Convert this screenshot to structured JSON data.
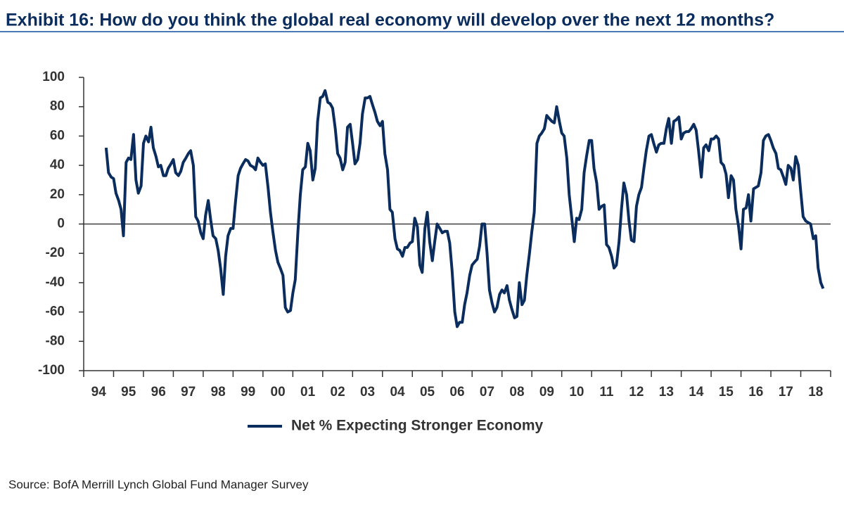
{
  "chart_data": {
    "type": "line",
    "title": "Exhibit 16: How do you think the global real economy will develop over the next 12 months?",
    "source": "Source: BofA Merrill Lynch Global Fund Manager Survey",
    "x": [
      1994.75,
      1994.83,
      1994.92,
      1995,
      1995.08,
      1995.17,
      1995.25,
      1995.33,
      1995.42,
      1995.5,
      1995.58,
      1995.67,
      1995.75,
      1995.83,
      1995.92,
      1996,
      1996.08,
      1996.17,
      1996.25,
      1996.33,
      1996.42,
      1996.5,
      1996.58,
      1996.67,
      1996.75,
      1996.83,
      1996.92,
      1997,
      1997.08,
      1997.17,
      1997.25,
      1997.33,
      1997.42,
      1997.5,
      1997.58,
      1997.67,
      1997.75,
      1997.83,
      1997.92,
      1998,
      1998.08,
      1998.17,
      1998.25,
      1998.33,
      1998.42,
      1998.5,
      1998.58,
      1998.67,
      1998.75,
      1998.83,
      1998.92,
      1999,
      1999.08,
      1999.17,
      1999.25,
      1999.33,
      1999.42,
      1999.5,
      1999.58,
      1999.67,
      1999.75,
      1999.83,
      1999.92,
      2000,
      2000.08,
      2000.17,
      2000.25,
      2000.33,
      2000.42,
      2000.5,
      2000.58,
      2000.67,
      2000.75,
      2000.83,
      2000.92,
      2001,
      2001.08,
      2001.17,
      2001.25,
      2001.33,
      2001.42,
      2001.5,
      2001.58,
      2001.67,
      2001.75,
      2001.83,
      2001.92,
      2002,
      2002.08,
      2002.17,
      2002.25,
      2002.33,
      2002.42,
      2002.5,
      2002.58,
      2002.67,
      2002.75,
      2002.83,
      2002.92,
      2003,
      2003.08,
      2003.17,
      2003.25,
      2003.33,
      2003.42,
      2003.5,
      2003.58,
      2003.67,
      2003.75,
      2003.83,
      2003.92,
      2004,
      2004.08,
      2004.17,
      2004.25,
      2004.33,
      2004.42,
      2004.5,
      2004.58,
      2004.67,
      2004.75,
      2004.83,
      2004.92,
      2005,
      2005.08,
      2005.17,
      2005.25,
      2005.33,
      2005.42,
      2005.5,
      2005.58,
      2005.67,
      2005.75,
      2005.83,
      2005.92,
      2006,
      2006.08,
      2006.17,
      2006.25,
      2006.33,
      2006.42,
      2006.5,
      2006.58,
      2006.67,
      2006.75,
      2006.83,
      2006.92,
      2007,
      2007.08,
      2007.17,
      2007.25,
      2007.33,
      2007.42,
      2007.5,
      2007.58,
      2007.67,
      2007.75,
      2007.83,
      2007.92,
      2008,
      2008.08,
      2008.17,
      2008.25,
      2008.33,
      2008.42,
      2008.5,
      2008.58,
      2008.67,
      2008.75,
      2008.83,
      2008.92,
      2009,
      2009.08,
      2009.17,
      2009.25,
      2009.33,
      2009.42,
      2009.5,
      2009.58,
      2009.67,
      2009.75,
      2009.83,
      2009.92,
      2010,
      2010.08,
      2010.17,
      2010.25,
      2010.33,
      2010.42,
      2010.5,
      2010.58,
      2010.67,
      2010.75,
      2010.83,
      2010.92,
      2011,
      2011.08,
      2011.17,
      2011.25,
      2011.33,
      2011.42,
      2011.5,
      2011.58,
      2011.67,
      2011.75,
      2011.83,
      2011.92,
      2012,
      2012.08,
      2012.17,
      2012.25,
      2012.33,
      2012.42,
      2012.5,
      2012.58,
      2012.67,
      2012.75,
      2012.83,
      2012.92,
      2013,
      2013.08,
      2013.17,
      2013.25,
      2013.33,
      2013.42,
      2013.5,
      2013.58,
      2013.67,
      2013.75,
      2013.83,
      2013.92,
      2014,
      2014.08,
      2014.17,
      2014.25,
      2014.33,
      2014.42,
      2014.5,
      2014.58,
      2014.67,
      2014.75,
      2014.83,
      2014.92,
      2015,
      2015.08,
      2015.17,
      2015.25,
      2015.33,
      2015.42,
      2015.5,
      2015.58,
      2015.67,
      2015.75,
      2015.83,
      2015.92,
      2016,
      2016.08,
      2016.17,
      2016.25,
      2016.33,
      2016.42,
      2016.5,
      2016.58,
      2016.67,
      2016.75,
      2016.83,
      2016.92,
      2017,
      2017.08,
      2017.17,
      2017.25,
      2017.33,
      2017.42,
      2017.5,
      2017.58,
      2017.67,
      2017.75,
      2017.83,
      2017.92,
      2018,
      2018.08,
      2018.17,
      2018.25,
      2018.33,
      2018.42,
      2018.5,
      2018.58,
      2018.67,
      2018.75
    ],
    "series": [
      {
        "name": "Net % Expecting Stronger Economy",
        "color": "#0b2d5e",
        "values": [
          52,
          35,
          32,
          31,
          21,
          16,
          10,
          -8,
          42,
          45,
          44,
          61,
          30,
          21,
          26,
          55,
          60,
          56,
          66,
          52,
          46,
          39,
          40,
          33,
          33,
          38,
          41,
          44,
          35,
          33,
          36,
          42,
          45,
          48,
          50,
          40,
          5,
          2,
          -6,
          -10,
          6,
          16,
          3,
          -8,
          -10,
          -18,
          -30,
          -48,
          -22,
          -8,
          -3,
          -3,
          15,
          33,
          38,
          41,
          44,
          43,
          40,
          39,
          37,
          45,
          42,
          40,
          41,
          25,
          8,
          -5,
          -18,
          -26,
          -30,
          -35,
          -57,
          -60,
          -59,
          -47,
          -38,
          -5,
          20,
          37,
          39,
          55,
          50,
          30,
          38,
          70,
          86,
          87,
          91,
          83,
          82,
          79,
          65,
          48,
          45,
          37,
          42,
          66,
          68,
          55,
          41,
          44,
          55,
          75,
          86,
          86,
          87,
          81,
          76,
          70,
          67,
          70,
          48,
          37,
          10,
          8,
          -10,
          -17,
          -18,
          -22,
          -16,
          -16,
          -13,
          -12,
          4,
          -2,
          -28,
          -33,
          -3,
          8,
          -12,
          -25,
          -12,
          0,
          -3,
          -6,
          -5,
          -5,
          -13,
          -32,
          -60,
          -70,
          -67,
          -67,
          -55,
          -47,
          -35,
          -28,
          -26,
          -24,
          -15,
          0,
          0,
          -20,
          -45,
          -54,
          -60,
          -57,
          -48,
          -45,
          -47,
          -42,
          -52,
          -58,
          -64,
          -63,
          -40,
          -55,
          -52,
          -35,
          -20,
          -5,
          8,
          55,
          60,
          62,
          65,
          74,
          72,
          70,
          69,
          80,
          70,
          62,
          60,
          45,
          20,
          5,
          -12,
          4,
          3,
          10,
          35,
          46,
          57,
          57,
          38,
          28,
          10,
          12,
          13,
          -14,
          -16,
          -22,
          -30,
          -28,
          -12,
          10,
          28,
          20,
          2,
          -11,
          -12,
          12,
          20,
          25,
          38,
          50,
          60,
          61,
          55,
          49,
          54,
          55,
          55,
          65,
          72,
          55,
          70,
          71,
          73,
          58,
          62,
          63,
          63,
          65,
          68,
          64,
          50,
          32,
          52,
          54,
          50,
          58,
          58,
          60,
          58,
          42,
          40,
          34,
          18,
          33,
          30,
          10,
          -2,
          -17,
          10,
          11,
          20,
          2,
          24,
          25,
          26,
          35,
          57,
          60,
          61,
          57,
          52,
          48,
          38,
          37,
          32,
          27,
          40,
          38,
          30,
          46,
          40,
          22,
          5,
          2,
          1,
          0,
          -10,
          -8,
          -30,
          -40,
          -44
        ]
      }
    ],
    "xlim": [
      1994,
      2019
    ],
    "xticks": [
      {
        "value": 1994.5,
        "label": "94"
      },
      {
        "value": 1995.5,
        "label": "95"
      },
      {
        "value": 1996.5,
        "label": "96"
      },
      {
        "value": 1997.5,
        "label": "97"
      },
      {
        "value": 1998.5,
        "label": "98"
      },
      {
        "value": 1999.5,
        "label": "99"
      },
      {
        "value": 2000.5,
        "label": "00"
      },
      {
        "value": 2001.5,
        "label": "01"
      },
      {
        "value": 2002.5,
        "label": "02"
      },
      {
        "value": 2003.5,
        "label": "03"
      },
      {
        "value": 2004.5,
        "label": "04"
      },
      {
        "value": 2005.5,
        "label": "05"
      },
      {
        "value": 2006.5,
        "label": "06"
      },
      {
        "value": 2007.5,
        "label": "07"
      },
      {
        "value": 2008.5,
        "label": "08"
      },
      {
        "value": 2009.5,
        "label": "09"
      },
      {
        "value": 2010.5,
        "label": "10"
      },
      {
        "value": 2011.5,
        "label": "11"
      },
      {
        "value": 2012.5,
        "label": "12"
      },
      {
        "value": 2013.5,
        "label": "13"
      },
      {
        "value": 2014.5,
        "label": "14"
      },
      {
        "value": 2015.5,
        "label": "15"
      },
      {
        "value": 2016.5,
        "label": "16"
      },
      {
        "value": 2017.5,
        "label": "17"
      },
      {
        "value": 2018.5,
        "label": "18"
      }
    ],
    "xminor_ticks": [
      1994,
      1995,
      1996,
      1997,
      1998,
      1999,
      2000,
      2001,
      2002,
      2003,
      2004,
      2005,
      2006,
      2007,
      2008,
      2009,
      2010,
      2011,
      2012,
      2013,
      2014,
      2015,
      2016,
      2017,
      2018,
      2019
    ],
    "ylim": [
      -100,
      100
    ],
    "yticks": [
      -100,
      -80,
      -60,
      -40,
      -20,
      0,
      20,
      40,
      60,
      80,
      100
    ],
    "zero_line": true,
    "grid": false,
    "legend": "bottom"
  }
}
